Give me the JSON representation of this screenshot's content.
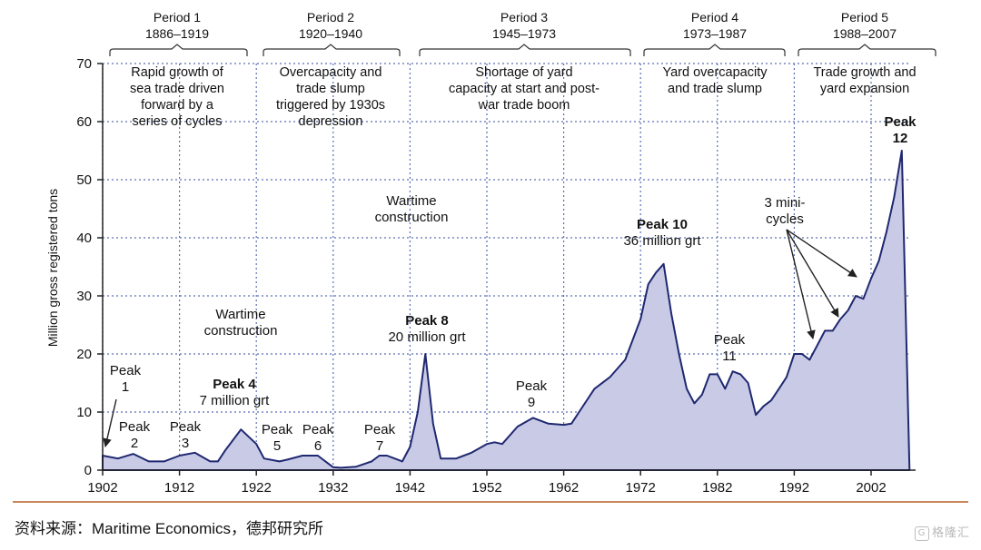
{
  "chart_data": {
    "type": "area",
    "ylabel": "Million gross registered tons",
    "xlim": [
      1902,
      2010
    ],
    "ylim": [
      0,
      70
    ],
    "grid": true,
    "x_ticks": [
      1902,
      1912,
      1922,
      1932,
      1942,
      1952,
      1962,
      1972,
      1982,
      1992,
      2002
    ],
    "y_ticks": [
      0,
      10,
      20,
      30,
      40,
      50,
      60,
      70
    ],
    "colors": {
      "fill": "#c9cbe6",
      "line": "#1f2870",
      "grid": "#5a6fb5"
    },
    "series": [
      {
        "x": [
          1902,
          1904,
          1906,
          1908,
          1910,
          1912,
          1914,
          1916,
          1917,
          1918,
          1920,
          1922,
          1923,
          1925,
          1926,
          1928,
          1930,
          1931,
          1932,
          1933,
          1935,
          1937,
          1938,
          1939,
          1940,
          1941,
          1942,
          1943,
          1944,
          1945,
          1946,
          1947,
          1948,
          1950,
          1952,
          1953,
          1954,
          1956,
          1958,
          1960,
          1962,
          1963,
          1964,
          1966,
          1968,
          1970,
          1972,
          1973,
          1974,
          1975,
          1976,
          1977,
          1978,
          1979,
          1980,
          1981,
          1982,
          1983,
          1984,
          1985,
          1986,
          1987,
          1988,
          1989,
          1990,
          1991,
          1992,
          1993,
          1994,
          1995,
          1996,
          1997,
          1998,
          1999,
          2000,
          2001,
          2002,
          2003,
          2004,
          2005,
          2006,
          2007
        ],
        "y": [
          2.5,
          2.0,
          2.8,
          1.5,
          1.5,
          2.5,
          3.0,
          1.5,
          1.5,
          3.5,
          7.0,
          4.5,
          2.0,
          1.5,
          1.8,
          2.5,
          2.5,
          1.5,
          0.5,
          0.4,
          0.6,
          1.5,
          2.5,
          2.5,
          2.0,
          1.5,
          4.0,
          10.0,
          20.0,
          8.0,
          2.0,
          2.0,
          2.0,
          3.0,
          4.5,
          4.8,
          4.5,
          7.5,
          9.0,
          8.0,
          7.8,
          8.0,
          10.0,
          14.0,
          16.0,
          19.0,
          26.0,
          32.0,
          34.0,
          35.5,
          27.0,
          20.0,
          14.0,
          11.5,
          13.0,
          16.5,
          16.5,
          14.0,
          17.0,
          16.5,
          15.0,
          9.5,
          11.0,
          12.0,
          14.0,
          16.0,
          20.0,
          20.0,
          19.0,
          21.5,
          24.0,
          24.0,
          26.0,
          27.5,
          30.0,
          29.5,
          33.0,
          36.0,
          41.0,
          47.0,
          55.0,
          0.0
        ]
      }
    ]
  },
  "periods": [
    {
      "title": "Period 1",
      "years": "1886–1919",
      "desc": [
        "Rapid growth of",
        "sea trade driven",
        "forward by a",
        "series of cycles"
      ]
    },
    {
      "title": "Period 2",
      "years": "1920–1940",
      "desc": [
        "Overcapacity and",
        "trade slump",
        "triggered by 1930s",
        "depression"
      ]
    },
    {
      "title": "Period 3",
      "years": "1945–1973",
      "desc": [
        "Shortage of yard",
        "capacity at start and post-",
        "war trade boom"
      ]
    },
    {
      "title": "Period 4",
      "years": "1973–1987",
      "desc": [
        "Yard overcapacity",
        "and trade slump"
      ]
    },
    {
      "title": "Period 5",
      "years": "1988–2007",
      "desc": [
        "Trade growth and",
        "yard expansion"
      ]
    }
  ],
  "annotations": [
    {
      "lines": [
        "Peak",
        "1"
      ],
      "bold": false
    },
    {
      "lines": [
        "Peak",
        "2"
      ],
      "bold": false
    },
    {
      "lines": [
        "Peak",
        "3"
      ],
      "bold": false
    },
    {
      "lines": [
        "Peak 4",
        "7 million grt"
      ],
      "bold": true
    },
    {
      "lines": [
        "Peak",
        "5"
      ],
      "bold": false
    },
    {
      "lines": [
        "Peak",
        "6"
      ],
      "bold": false
    },
    {
      "lines": [
        "Peak",
        "7"
      ],
      "bold": false
    },
    {
      "lines": [
        "Peak 8",
        "20 million grt"
      ],
      "bold": true
    },
    {
      "lines": [
        "Peak",
        "9"
      ],
      "bold": false
    },
    {
      "lines": [
        "Peak 10",
        "36 million grt"
      ],
      "bold": true
    },
    {
      "lines": [
        "Peak",
        "11"
      ],
      "bold": false
    },
    {
      "lines": [
        "Peak",
        "12"
      ],
      "bold": true
    },
    {
      "lines": [
        "Wartime",
        "construction"
      ],
      "bold": false
    },
    {
      "lines": [
        "Wartime",
        "construction"
      ],
      "bold": false
    },
    {
      "lines": [
        "3 mini-",
        "cycles"
      ],
      "bold": false
    }
  ],
  "source": "资料来源：Maritime Economics，德邦研究所",
  "watermark": "格隆汇"
}
